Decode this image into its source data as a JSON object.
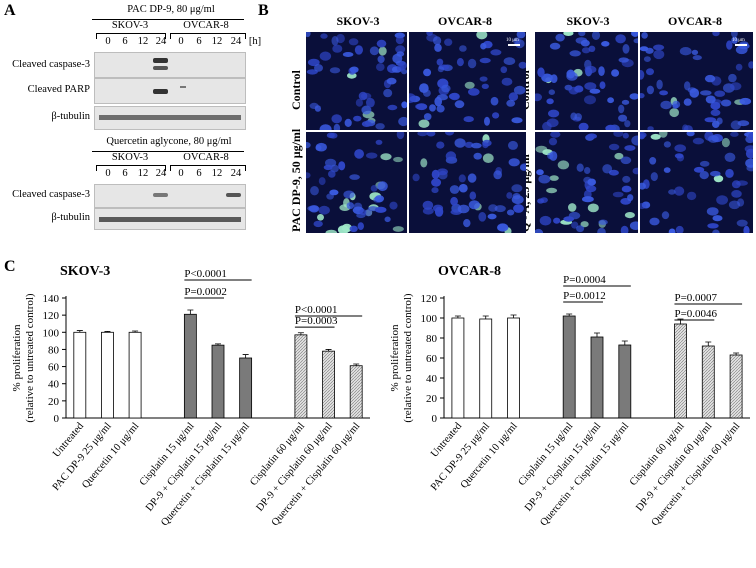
{
  "panel_a": {
    "label": "A",
    "blot1": {
      "treatment": "PAC DP-9, 80 μg/ml",
      "cell_line_1": "SKOV-3",
      "cell_line_2": "OVCAR-8",
      "lanes": [
        "0",
        "6",
        "12",
        "24"
      ],
      "unit": "[h]",
      "rows": [
        "Cleaved caspase-3",
        "Cleaved PARP",
        "β-tubulin"
      ]
    },
    "blot2": {
      "treatment": "Quercetin aglycone, 80 μg/ml",
      "cell_line_1": "SKOV-3",
      "cell_line_2": "OVCAR-8",
      "lanes": [
        "0",
        "6",
        "12",
        "24"
      ],
      "rows": [
        "Cleaved caspase-3",
        "β-tubulin"
      ]
    }
  },
  "panel_b": {
    "label": "B",
    "left": {
      "col1": "SKOV-3",
      "col2": "OVCAR-8",
      "row1": "Control",
      "row2": "PAC DP-9, 50 μg/ml",
      "scale": "10 μm"
    },
    "right": {
      "col1": "SKOV-3",
      "col2": "OVCAR-8",
      "row1": "Control",
      "row2": "Q - A, 25 μg/ml",
      "scale": "10 μm"
    }
  },
  "panel_c": {
    "label": "C",
    "colors": {
      "white": "#ffffff",
      "gray": "#7a7a7a",
      "hatch": "#cfcfcf"
    },
    "chart_data": [
      {
        "type": "bar",
        "title": "SKOV-3",
        "ylabel_line1": "% proliferation",
        "ylabel_line2": "(relative to untreated control)",
        "ylim": [
          0,
          140
        ],
        "yticks": [
          0,
          20,
          40,
          60,
          80,
          100,
          120,
          140
        ],
        "categories": [
          "Untreated",
          "PAC DP-9 25 μg/ml",
          "Quercetin 10 μg/ml",
          "Cisplatin 15 μg/ml",
          "DP-9 + Cisplatin 15 μg/ml",
          "Quercetin + Cisplatin 15 μg/ml",
          "Cisplatin 60 μg/ml",
          "DP-9 + Cisplatin 60 μg/ml",
          "Quercetin + Cisplatin 60 μg/ml"
        ],
        "values": [
          100,
          100,
          100,
          121,
          85,
          70,
          97,
          78,
          61
        ],
        "errors": [
          2,
          1,
          1.5,
          5,
          1.5,
          4,
          2.5,
          2,
          2
        ],
        "fills": [
          "white",
          "white",
          "white",
          "gray",
          "gray",
          "gray",
          "hatch",
          "hatch",
          "hatch"
        ],
        "annotations": [
          {
            "text": "P<0.0001",
            "from": 3,
            "to": 5,
            "level": 161
          },
          {
            "text": "P=0.0002",
            "from": 3,
            "to": 4,
            "level": 140
          },
          {
            "text": "P<0.0001",
            "from": 6,
            "to": 8,
            "level": 119
          },
          {
            "text": "P=0.0003",
            "from": 6,
            "to": 7,
            "level": 106
          }
        ]
      },
      {
        "type": "bar",
        "title": "OVCAR-8",
        "ylabel_line1": "% proliferation",
        "ylabel_line2": "(relative to untreated control)",
        "ylim": [
          0,
          120
        ],
        "yticks": [
          0,
          20,
          40,
          60,
          80,
          100,
          120
        ],
        "categories": [
          "Untreated",
          "PAC DP-9 25 μg/ml",
          "Quercetin 10 μg/ml",
          "Cisplatin 15 μg/ml",
          "DP-9 + Cisplatin 15 μg/ml",
          "Quercetin + Cisplatin 15 μg/ml",
          "Cisplatin 60 μg/ml",
          "DP-9 + Cisplatin 60 μg/ml",
          "Quercetin + Cisplatin 60 μg/ml"
        ],
        "values": [
          100,
          99,
          100,
          102,
          81,
          73,
          94,
          72,
          63
        ],
        "errors": [
          2,
          3,
          3,
          2,
          4,
          4,
          5,
          4,
          2
        ],
        "fills": [
          "white",
          "white",
          "white",
          "gray",
          "gray",
          "gray",
          "hatch",
          "hatch",
          "hatch"
        ],
        "annotations": [
          {
            "text": "P=0.0004",
            "from": 3,
            "to": 5,
            "level": 132
          },
          {
            "text": "P=0.0012",
            "from": 3,
            "to": 4,
            "level": 116
          },
          {
            "text": "P=0.0007",
            "from": 6,
            "to": 8,
            "level": 114
          },
          {
            "text": "P=0.0046",
            "from": 6,
            "to": 7,
            "level": 98
          }
        ]
      }
    ]
  }
}
